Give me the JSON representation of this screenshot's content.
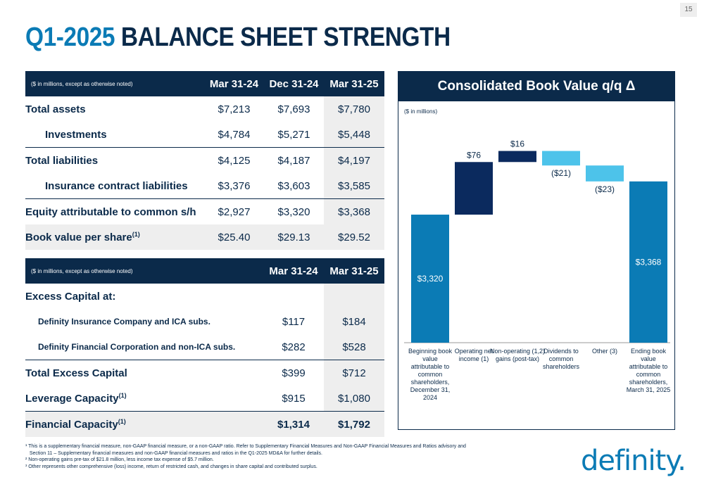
{
  "page_number": "15",
  "title": {
    "accent": "Q1-2025",
    "rest": "BALANCE SHEET STRENGTH"
  },
  "table1": {
    "note": "($ in millions, except as otherwise noted)",
    "columns": [
      "Mar 31-24",
      "Dec 31-24",
      "Mar 31-25"
    ],
    "rows": [
      {
        "label": "Total assets",
        "values": [
          "$7,213",
          "$7,693",
          "$7,780"
        ]
      },
      {
        "label": "Investments",
        "values": [
          "$4,784",
          "$5,271",
          "$5,448"
        ]
      },
      {
        "label": "Total liabilities",
        "values": [
          "$4,125",
          "$4,187",
          "$4,197"
        ]
      },
      {
        "label": "Insurance contract liabilities",
        "values": [
          "$3,376",
          "$3,603",
          "$3,585"
        ]
      },
      {
        "label": "Equity attributable to common s/h",
        "values": [
          "$2,927",
          "$3,320",
          "$3,368"
        ]
      },
      {
        "label": "Book value per share",
        "sup": "(1)",
        "values": [
          "$25.40",
          "$29.13",
          "$29.52"
        ]
      }
    ]
  },
  "table2": {
    "note": "($ in millions, except as otherwise noted)",
    "columns": [
      "Mar 31-24",
      "Mar 31-25"
    ],
    "section_label": "Excess Capital at:",
    "rows": [
      {
        "label": "Definity Insurance Company and ICA subs.",
        "values": [
          "$117",
          "$184"
        ]
      },
      {
        "label": "Definity Financial Corporation and non-ICA subs.",
        "values": [
          "$282",
          "$528"
        ]
      },
      {
        "label": "Total Excess Capital",
        "values": [
          "$399",
          "$712"
        ]
      },
      {
        "label": "Leverage Capacity",
        "sup": "(1)",
        "values": [
          "$915",
          "$1,080"
        ]
      },
      {
        "label": "Financial Capacity",
        "sup": "(1)",
        "values": [
          "$1,314",
          "$1,792"
        ]
      }
    ]
  },
  "chart_data": {
    "type": "bar",
    "subtype": "waterfall",
    "title": "Consolidated Book Value q/q Δ",
    "unit_note": "($ in millions)",
    "categories": [
      "Beginning book value attributable to common shareholders, December 31, 2024",
      "Operating net income (1)",
      "Non-operating gains (post-tax) (1,2)",
      "Dividends to common shareholders",
      "Other (3)",
      "Ending book value attributable to common shareholders, March 31, 2025"
    ],
    "category_lines": [
      [
        "Beginning book",
        "value",
        "attributable to",
        "common",
        "shareholders,",
        "December 31,",
        "2024"
      ],
      [
        "Operating net",
        "income (1)"
      ],
      [
        "Non-operating (1,2)",
        "gains (post-tax)"
      ],
      [
        "Dividends to",
        "common",
        "shareholders"
      ],
      [
        "Other (3)"
      ],
      [
        "Ending book",
        "value",
        "attributable to",
        "common",
        "shareholders,",
        "March 31, 2025"
      ]
    ],
    "values": [
      3320,
      76,
      16,
      -21,
      -23,
      3368
    ],
    "labels": [
      "$3,320",
      "$76",
      "$16",
      "($21)",
      "($23)",
      "$3,368"
    ],
    "kinds": [
      "total",
      "increase",
      "increase",
      "decrease",
      "decrease",
      "total"
    ],
    "colors": {
      "total": "#0b7bb5",
      "increase": "#0b2a5e",
      "decrease": "#4dc3ea"
    }
  },
  "footnotes": [
    "¹ This is a supplementary financial measure, non-GAAP financial measure, or a non-GAAP ratio. Refer to Supplementary Financial Measures and Non-GAAP Financial Measures and Ratios advisory and",
    "   Section 11 – Supplementary financial measures and non-GAAP financial measures and ratios in the Q1-2025 MD&A for further details.",
    "² Non-operating gains pre-tax of $21.8 million, less income tax expense of $5.7 million.",
    "³ Other represents other comprehensive (loss) income, return of restricted cash, and changes in share capital and contributed surplus."
  ],
  "logo": "definity."
}
